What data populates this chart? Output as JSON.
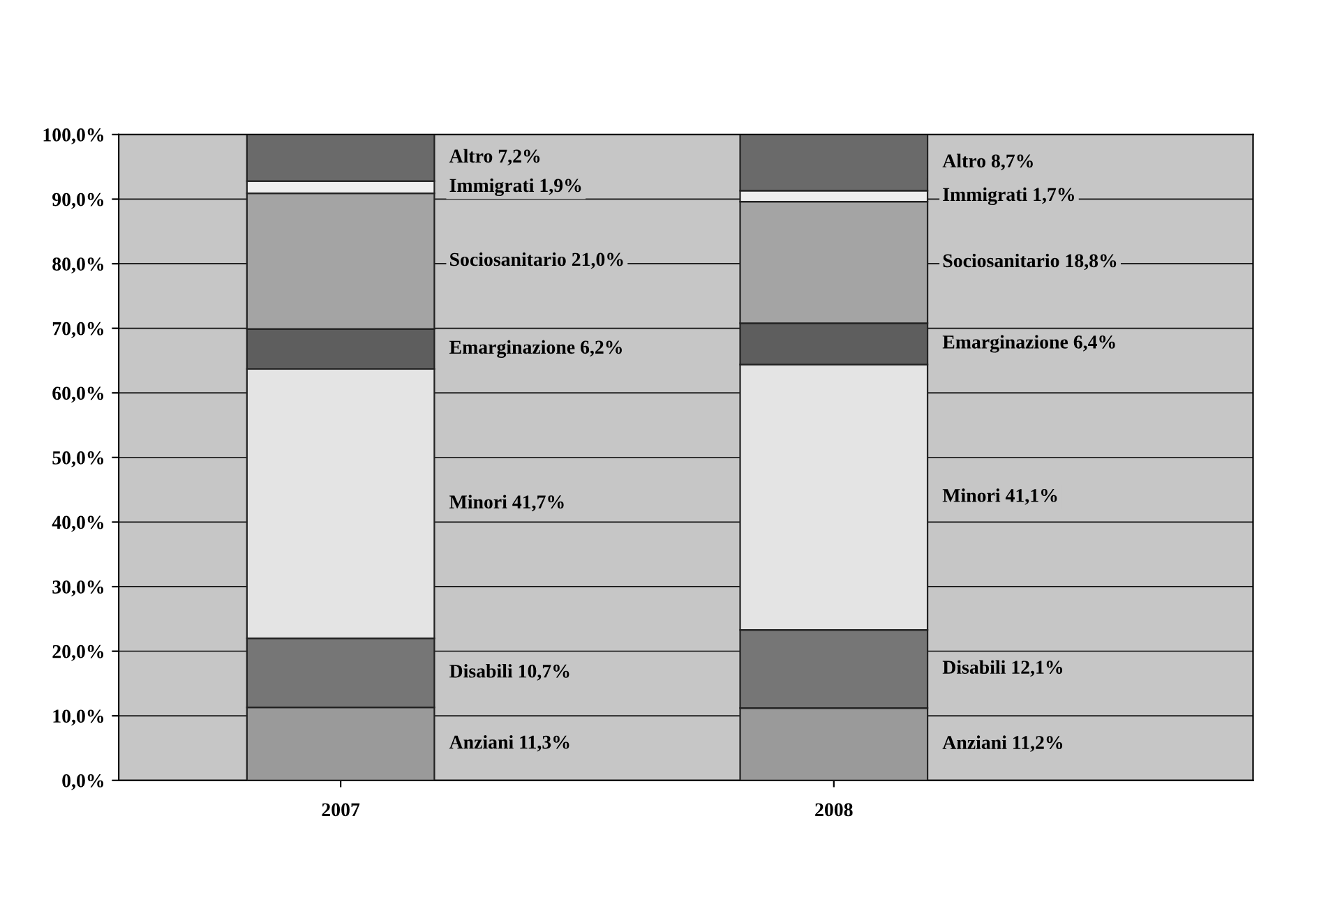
{
  "chart_data": {
    "type": "bar",
    "stacked": true,
    "categories": [
      "2007",
      "2008"
    ],
    "series": [
      {
        "name": "Anziani",
        "color": "#9a9a9a",
        "values": [
          11.3,
          11.2
        ],
        "value_labels": [
          "11,3%",
          "11,2%"
        ]
      },
      {
        "name": "Disabili",
        "color": "#767676",
        "values": [
          10.7,
          12.1
        ],
        "value_labels": [
          "10,7%",
          "12,1%"
        ]
      },
      {
        "name": "Minori",
        "color": "#e4e4e4",
        "values": [
          41.7,
          41.1
        ],
        "value_labels": [
          "41,7%",
          "41,1%"
        ]
      },
      {
        "name": "Emarginazione",
        "color": "#5e5e5e",
        "values": [
          6.2,
          6.4
        ],
        "value_labels": [
          "6,2%",
          "6,4%"
        ]
      },
      {
        "name": "Sociosanitario",
        "color": "#a4a4a4",
        "values": [
          21.0,
          18.8
        ],
        "value_labels": [
          "21,0%",
          "18,8%"
        ]
      },
      {
        "name": "Immigrati",
        "color": "#efefef",
        "values": [
          1.9,
          1.7
        ],
        "value_labels": [
          "1,9%",
          "1,7%"
        ]
      },
      {
        "name": "Altro",
        "color": "#6a6a6a",
        "values": [
          7.2,
          8.7
        ],
        "value_labels": [
          "7,2%",
          "8,7%"
        ]
      }
    ],
    "ylim": [
      0,
      100
    ],
    "yticks": [
      {
        "value": 0,
        "label": "0,0%"
      },
      {
        "value": 10,
        "label": "10,0%"
      },
      {
        "value": 20,
        "label": "20,0%"
      },
      {
        "value": 30,
        "label": "30,0%"
      },
      {
        "value": 40,
        "label": "40,0%"
      },
      {
        "value": 50,
        "label": "50,0%"
      },
      {
        "value": 60,
        "label": "60,0%"
      },
      {
        "value": 70,
        "label": "70,0%"
      },
      {
        "value": 80,
        "label": "80,0%"
      },
      {
        "value": 90,
        "label": "90,0%"
      },
      {
        "value": 100,
        "label": "100,0%"
      }
    ],
    "grid": "y",
    "legend": false
  }
}
